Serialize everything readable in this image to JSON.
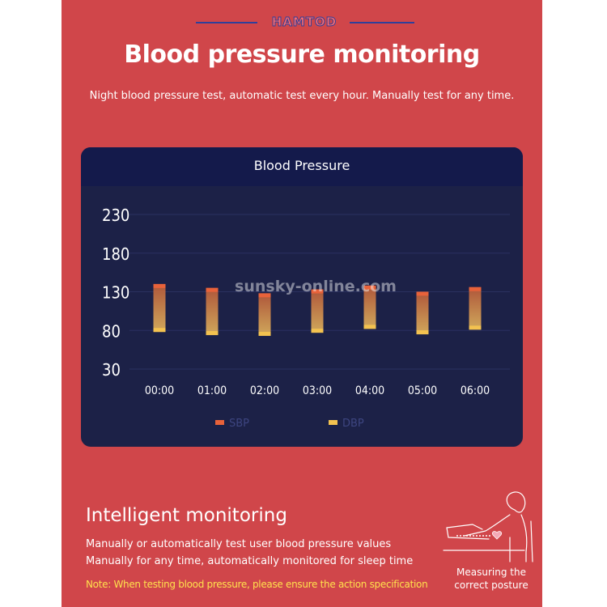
{
  "brand": "HAMTOD",
  "title": "Blood pressure monitoring",
  "subtitle": "Night blood pressure test, automatic test every hour. Manually test for any time.",
  "card_title": "Blood Pressure",
  "footer": {
    "title": "Intelligent monitoring",
    "desc1": "Manually or automatically test user blood pressure values",
    "desc2": "Manually for any time, automatically monitored for sleep time",
    "note": "Note: When testing blood pressure, please ensure the action specification"
  },
  "posture": {
    "line1": "Measuring the",
    "line2": "correct posture"
  },
  "watermark": "sunsky-online.com",
  "colors": {
    "panel": "#d0464a",
    "card": "#1c2147",
    "sbp": "#e8623a",
    "dbp": "#f3c250",
    "note": "#ffe14d"
  },
  "chart_data": {
    "type": "bar",
    "title": "Blood Pressure",
    "categories": [
      "00:00",
      "01:00",
      "02:00",
      "03:00",
      "04:00",
      "05:00",
      "06:00"
    ],
    "series": [
      {
        "name": "SBP",
        "values": [
          138,
          133,
          126,
          131,
          136,
          128,
          134
        ]
      },
      {
        "name": "DBP",
        "values": [
          80,
          76,
          75,
          79,
          84,
          77,
          83
        ]
      }
    ],
    "yticks": [
      230,
      180,
      130,
      80,
      30
    ],
    "ylim": [
      30,
      230
    ],
    "xlabel": "",
    "ylabel": "",
    "legend": "bottom"
  }
}
